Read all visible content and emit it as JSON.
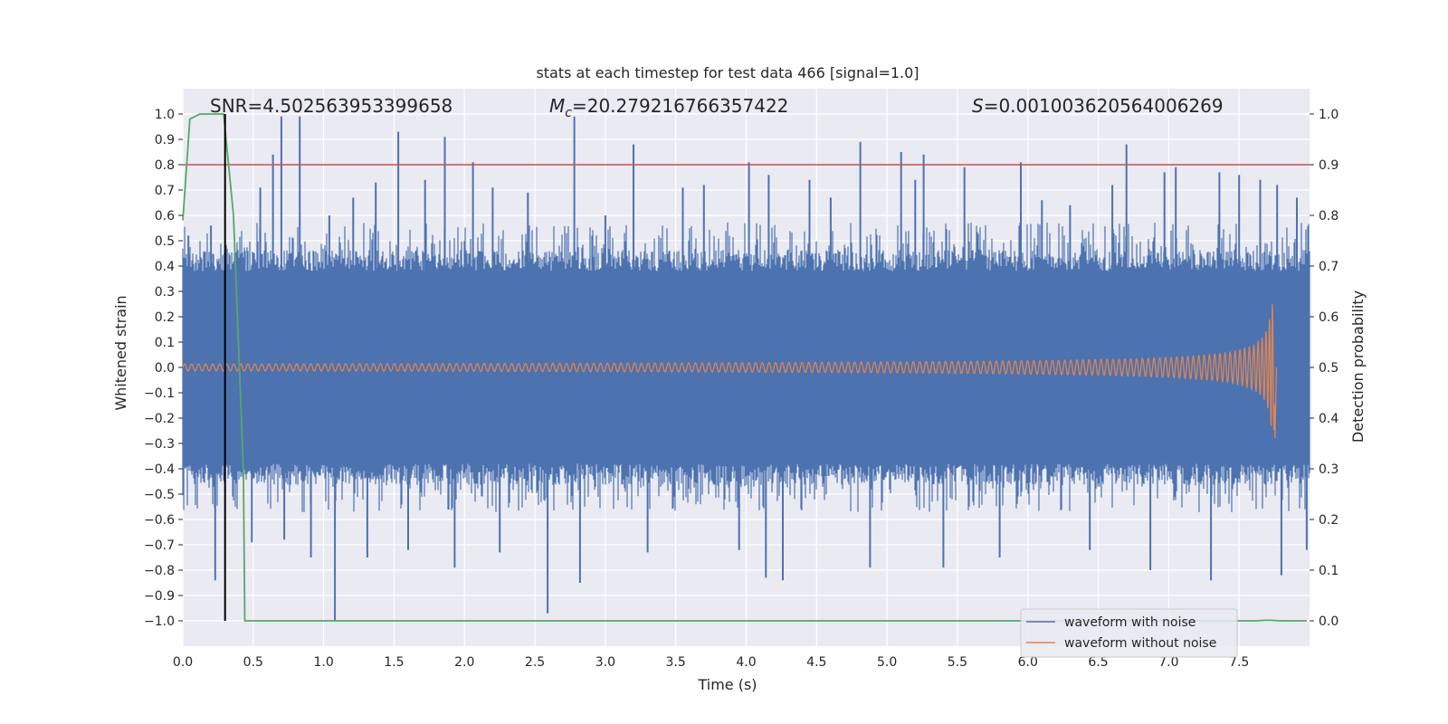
{
  "chart_data": {
    "type": "line",
    "title": "stats at each timestep for test data 466 [signal=1.0]",
    "xlabel": "Time (s)",
    "ylabel": "Whitened strain",
    "y2label": "Detection probability",
    "xlim": [
      0.0,
      8.0
    ],
    "ylim": [
      -1.1,
      1.1
    ],
    "y2lim": [
      -0.05,
      1.05
    ],
    "x_ticks": [
      0.0,
      0.5,
      1.0,
      1.5,
      2.0,
      2.5,
      3.0,
      3.5,
      4.0,
      4.5,
      5.0,
      5.5,
      6.0,
      6.5,
      7.0,
      7.5
    ],
    "x_tick_labels": [
      "0.0",
      "0.5",
      "1.0",
      "1.5",
      "2.0",
      "2.5",
      "3.0",
      "3.5",
      "4.0",
      "4.5",
      "5.0",
      "5.5",
      "6.0",
      "6.5",
      "7.0",
      "7.5"
    ],
    "y_ticks": [
      1.0,
      0.9,
      0.8,
      0.7,
      0.6,
      0.5,
      0.4,
      0.3,
      0.2,
      0.1,
      0.0,
      -0.1,
      -0.2,
      -0.3,
      -0.4,
      -0.5,
      -0.6,
      -0.7,
      -0.8,
      -0.9,
      -1.0
    ],
    "y_tick_labels": [
      "1.0",
      "0.9",
      "0.8",
      "0.7",
      "0.6",
      "0.5",
      "0.4",
      "0.3",
      "0.2",
      "0.1",
      "0.0",
      "−0.1",
      "−0.2",
      "−0.3",
      "−0.4",
      "−0.5",
      "−0.6",
      "−0.7",
      "−0.8",
      "−0.9",
      "−1.0"
    ],
    "y2_ticks": [
      1.0,
      0.9,
      0.8,
      0.7,
      0.6,
      0.5,
      0.4,
      0.3,
      0.2,
      0.1,
      0.0
    ],
    "y2_tick_labels": [
      "1.0",
      "0.9",
      "0.8",
      "0.7",
      "0.6",
      "0.5",
      "0.4",
      "0.3",
      "0.2",
      "0.1",
      "0.0"
    ],
    "grid": true,
    "legend_position": "bottom-right",
    "annotations": {
      "snr": "SNR=4.502563953399658",
      "mc_symbol": "M",
      "mc_sub": "c",
      "mc_value": "=20.279216766357422",
      "s_symbol": "S",
      "s_value": "=0.001003620564006269"
    },
    "threshold": {
      "axis": "y2",
      "value": 0.9,
      "color": "#c44e52"
    },
    "marker_time": 0.3,
    "series": [
      {
        "name": "waveform with noise",
        "axis": "y",
        "color": "#4c72b0",
        "t_start": 0.0,
        "t_end": 8.0,
        "core_amplitude": 0.38,
        "typical_peak": 0.5,
        "spikes": [
          [
            0.04,
            0.52
          ],
          [
            0.2,
            0.56
          ],
          [
            0.23,
            -0.84
          ],
          [
            0.41,
            0.43
          ],
          [
            0.49,
            -0.69
          ],
          [
            0.55,
            0.71
          ],
          [
            0.64,
            0.84
          ],
          [
            0.7,
            0.99
          ],
          [
            0.72,
            -0.68
          ],
          [
            0.83,
            0.99
          ],
          [
            0.91,
            -0.75
          ],
          [
            1.04,
            0.6
          ],
          [
            1.08,
            -1.0
          ],
          [
            1.21,
            0.67
          ],
          [
            1.31,
            -0.75
          ],
          [
            1.37,
            0.73
          ],
          [
            1.53,
            0.93
          ],
          [
            1.6,
            -0.72
          ],
          [
            1.72,
            0.74
          ],
          [
            1.86,
            0.91
          ],
          [
            1.93,
            -0.79
          ],
          [
            2.06,
            0.81
          ],
          [
            2.2,
            0.71
          ],
          [
            2.25,
            -0.73
          ],
          [
            2.45,
            0.69
          ],
          [
            2.59,
            -0.97
          ],
          [
            2.78,
            0.99
          ],
          [
            2.82,
            -0.85
          ],
          [
            3.0,
            0.6
          ],
          [
            3.2,
            0.88
          ],
          [
            3.3,
            -0.73
          ],
          [
            3.55,
            0.71
          ],
          [
            3.7,
            0.72
          ],
          [
            3.95,
            -0.72
          ],
          [
            4.02,
            0.81
          ],
          [
            4.14,
            -0.83
          ],
          [
            4.16,
            0.76
          ],
          [
            4.26,
            -0.84
          ],
          [
            4.45,
            0.74
          ],
          [
            4.6,
            0.67
          ],
          [
            4.81,
            0.89
          ],
          [
            4.88,
            -0.79
          ],
          [
            5.1,
            0.85
          ],
          [
            5.2,
            0.74
          ],
          [
            5.26,
            0.84
          ],
          [
            5.4,
            -0.79
          ],
          [
            5.55,
            0.79
          ],
          [
            5.8,
            -0.75
          ],
          [
            5.95,
            0.81
          ],
          [
            6.1,
            0.66
          ],
          [
            6.3,
            0.64
          ],
          [
            6.44,
            -0.72
          ],
          [
            6.6,
            0.72
          ],
          [
            6.7,
            0.88
          ],
          [
            6.87,
            -0.8
          ],
          [
            6.97,
            0.77
          ],
          [
            7.05,
            0.79
          ],
          [
            7.3,
            -0.84
          ],
          [
            7.36,
            0.77
          ],
          [
            7.5,
            0.76
          ],
          [
            7.65,
            0.74
          ],
          [
            7.77,
            0.72
          ],
          [
            7.8,
            -0.82
          ],
          [
            7.91,
            0.67
          ],
          [
            7.98,
            -0.72
          ]
        ]
      },
      {
        "name": "waveform without noise",
        "axis": "y",
        "color": "#dd8452",
        "chirp_start": 0.0,
        "chirp_merger": 7.75,
        "amplitude_start": 0.003,
        "amplitude_peak": 0.25,
        "amplitude_min_peak": -0.28,
        "frequency_start": 10,
        "frequency_peak": 100
      },
      {
        "name": "detection probability",
        "axis": "y2",
        "color": "#55a868",
        "points": [
          [
            0.0,
            0.79
          ],
          [
            0.05,
            0.99
          ],
          [
            0.12,
            1.0
          ],
          [
            0.29,
            1.0
          ],
          [
            0.36,
            0.8
          ],
          [
            0.43,
            0.3
          ],
          [
            0.44,
            0.0
          ],
          [
            7.5,
            0.0
          ],
          [
            7.62,
            0.0
          ],
          [
            7.68,
            0.001
          ],
          [
            7.72,
            0.001
          ],
          [
            7.8,
            0.0
          ],
          [
            7.98,
            0.0
          ]
        ]
      }
    ]
  }
}
